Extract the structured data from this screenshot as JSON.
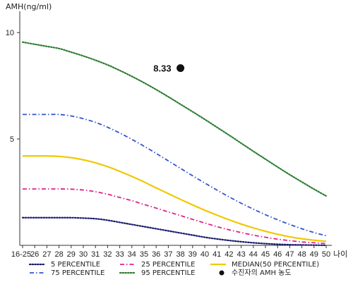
{
  "chart_data": {
    "type": "line",
    "title": "",
    "ylabel": "AMH(ng/ml)",
    "xlabel": "나이",
    "x_categories": [
      "16-25",
      "26",
      "27",
      "28",
      "29",
      "30",
      "31",
      "32",
      "33",
      "34",
      "35",
      "36",
      "37",
      "38",
      "39",
      "40",
      "41",
      "42",
      "43",
      "44",
      "45",
      "46",
      "47",
      "48",
      "49",
      "50"
    ],
    "yticks": [
      5,
      10
    ],
    "ylim": [
      0,
      11
    ],
    "grid": false,
    "legend_position": "bottom",
    "series": [
      {
        "name": "5 PERCENTILE",
        "color": "#1a1a6e",
        "style": "dotted",
        "values": [
          1.3,
          1.3,
          1.3,
          1.3,
          1.3,
          1.28,
          1.25,
          1.18,
          1.08,
          0.98,
          0.88,
          0.78,
          0.68,
          0.58,
          0.48,
          0.38,
          0.3,
          0.23,
          0.17,
          0.12,
          0.08,
          0.05,
          0.03,
          0.02,
          0.01,
          0.0
        ]
      },
      {
        "name": "25 PERCENTILE",
        "color": "#e0208c",
        "style": "dashdot",
        "values": [
          2.65,
          2.65,
          2.65,
          2.65,
          2.64,
          2.6,
          2.52,
          2.4,
          2.25,
          2.1,
          1.92,
          1.75,
          1.57,
          1.4,
          1.22,
          1.05,
          0.88,
          0.73,
          0.6,
          0.48,
          0.38,
          0.29,
          0.22,
          0.16,
          0.12,
          0.08
        ]
      },
      {
        "name": "MEDIAN(50 PERCENTILE)",
        "color": "#f0c800",
        "style": "solid",
        "values": [
          4.2,
          4.2,
          4.2,
          4.18,
          4.12,
          4.02,
          3.88,
          3.7,
          3.48,
          3.24,
          2.98,
          2.7,
          2.43,
          2.16,
          1.9,
          1.65,
          1.42,
          1.2,
          1.0,
          0.82,
          0.66,
          0.52,
          0.4,
          0.31,
          0.24,
          0.19
        ]
      },
      {
        "name": "75 PERCENTILE",
        "color": "#3355cc",
        "style": "dashdot",
        "values": [
          6.15,
          6.15,
          6.15,
          6.15,
          6.08,
          5.95,
          5.78,
          5.55,
          5.28,
          4.98,
          4.66,
          4.32,
          3.97,
          3.62,
          3.27,
          2.93,
          2.6,
          2.28,
          1.98,
          1.7,
          1.44,
          1.2,
          0.98,
          0.78,
          0.6,
          0.45
        ]
      },
      {
        "name": "95 PERCENTILE",
        "color": "#2e7d32",
        "style": "dotted",
        "values": [
          9.55,
          9.45,
          9.35,
          9.25,
          9.08,
          8.9,
          8.7,
          8.48,
          8.22,
          7.94,
          7.64,
          7.32,
          6.98,
          6.63,
          6.28,
          5.92,
          5.55,
          5.18,
          4.8,
          4.42,
          4.05,
          3.68,
          3.32,
          2.98,
          2.64,
          2.32
        ]
      }
    ],
    "annotation": {
      "name": "수진자의 AMH 농도",
      "x": "38",
      "y": 8.33,
      "label": "8.33"
    }
  }
}
